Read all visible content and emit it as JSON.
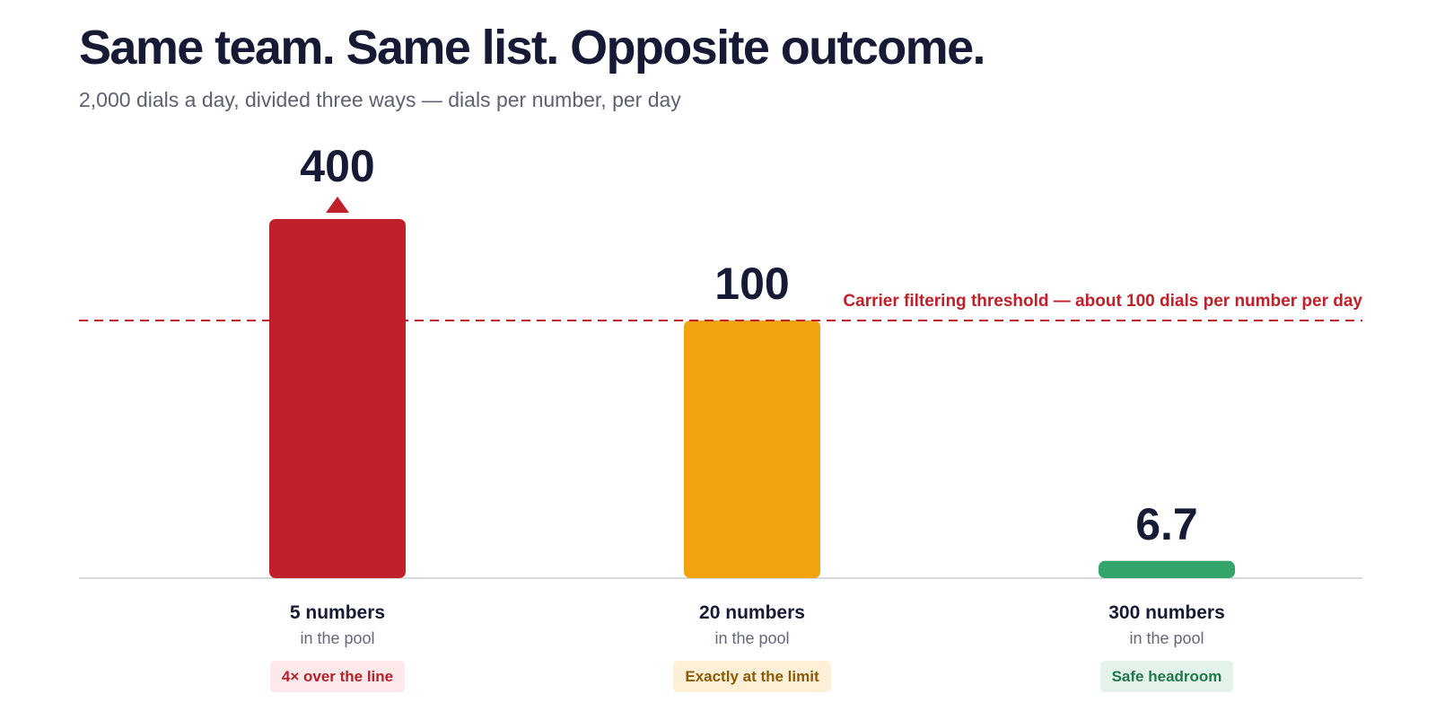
{
  "header": {
    "title": "Same team. Same list. Opposite outcome.",
    "subtitle": "2,000 dials a day, divided three ways — dials per number, per day"
  },
  "chart_data": {
    "type": "bar",
    "categories": [
      "5 numbers",
      "20 numbers",
      "300 numbers"
    ],
    "category_sublabels": [
      "in the pool",
      "in the pool",
      "in the pool"
    ],
    "values": [
      400,
      100,
      6.7
    ],
    "value_labels": [
      "400",
      "100",
      "6.7"
    ],
    "bar_colors": [
      "#c0202a",
      "#f2a30f",
      "#33a56b"
    ],
    "badges": [
      {
        "text": "4× over the line",
        "bg": "#fde8ea",
        "color": "#b3222b"
      },
      {
        "text": "Exactly at the limit",
        "bg": "#fdf0d6",
        "color": "#8a5a06"
      },
      {
        "text": "Safe headroom",
        "bg": "#e3f3ea",
        "color": "#20774a"
      }
    ],
    "threshold": {
      "value": 100,
      "label": "Carrier filtering threshold — about 100 dials per number per day",
      "color": "#c0202a",
      "style": "dashed"
    },
    "overflow_marker": {
      "category_index": 0,
      "direction": "up",
      "color": "#c0202a"
    },
    "ylim": [
      0,
      100
    ],
    "xlabel": "",
    "ylabel": "",
    "grid": false,
    "legend": "none"
  }
}
